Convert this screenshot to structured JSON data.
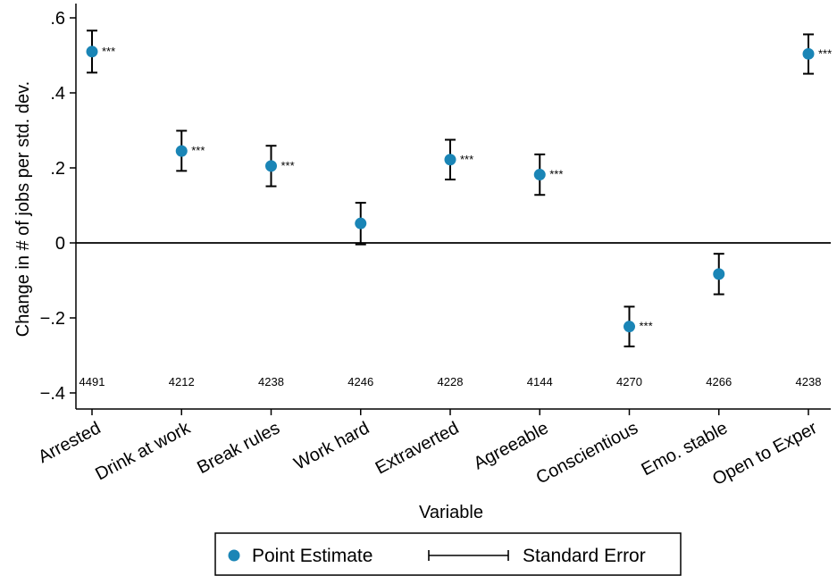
{
  "chart_data": {
    "type": "scatter",
    "xlabel": "Variable",
    "ylabel": "Change in # of jobs per std. dev.",
    "ylim": [
      -0.45,
      0.63
    ],
    "yticks": [
      -0.4,
      -0.2,
      0,
      0.2,
      0.4,
      0.6
    ],
    "ytick_labels": [
      "−.4",
      "−.2",
      "0",
      ".2",
      ".4",
      ".6"
    ],
    "reference_line": 0,
    "grid": false,
    "legend_position": "bottom-center",
    "legend": {
      "point_label": "Point Estimate",
      "error_label": "Standard Error"
    },
    "marker_color": "#1a85b6",
    "categories": [
      "Arrested",
      "Drink at work",
      "Break rules",
      "Work hard",
      "Extraverted",
      "Agreeable",
      "Conscientious",
      "Emo. stable",
      "Open to Exper"
    ],
    "estimates": [
      0.51,
      0.245,
      0.205,
      0.052,
      0.222,
      0.182,
      -0.223,
      -0.083,
      0.504
    ],
    "se_lower": [
      0.454,
      0.192,
      0.151,
      -0.004,
      0.169,
      0.128,
      -0.276,
      -0.137,
      0.451
    ],
    "se_upper": [
      0.566,
      0.299,
      0.259,
      0.107,
      0.275,
      0.236,
      -0.17,
      -0.029,
      0.556
    ],
    "significance": [
      "***",
      "***",
      "***",
      "",
      "***",
      "***",
      "***",
      "",
      "***"
    ],
    "counts": [
      "4491",
      "4212",
      "4238",
      "4246",
      "4228",
      "4144",
      "4270",
      "4266",
      "4238"
    ]
  }
}
